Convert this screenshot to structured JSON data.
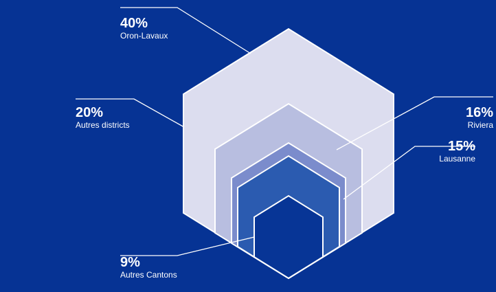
{
  "colors": {
    "background": "#063394",
    "outline": "#ffffff"
  },
  "chart_data": {
    "type": "nested-hexagon",
    "categories": [
      "Oron-Lavaux",
      "Autres districts",
      "Riviera",
      "Lausanne",
      "Autres Cantons"
    ],
    "values": [
      40,
      20,
      16,
      15,
      9
    ],
    "value_labels": [
      "40%",
      "20%",
      "16%",
      "15%",
      "9%"
    ],
    "series": [
      {
        "name": "Oron-Lavaux",
        "value": 40,
        "label": "40%",
        "color": "#DCDDEF"
      },
      {
        "name": "Autres districts",
        "value": 20,
        "label": "20%",
        "color": "#B8BEE0"
      },
      {
        "name": "Riviera",
        "value": 16,
        "label": "16%",
        "color": "#7B8CCC"
      },
      {
        "name": "Lausanne",
        "value": 15,
        "label": "15%",
        "color": "#2B5BB0"
      },
      {
        "name": "Autres Cantons",
        "value": 9,
        "label": "9%",
        "color": "#073596"
      }
    ]
  }
}
